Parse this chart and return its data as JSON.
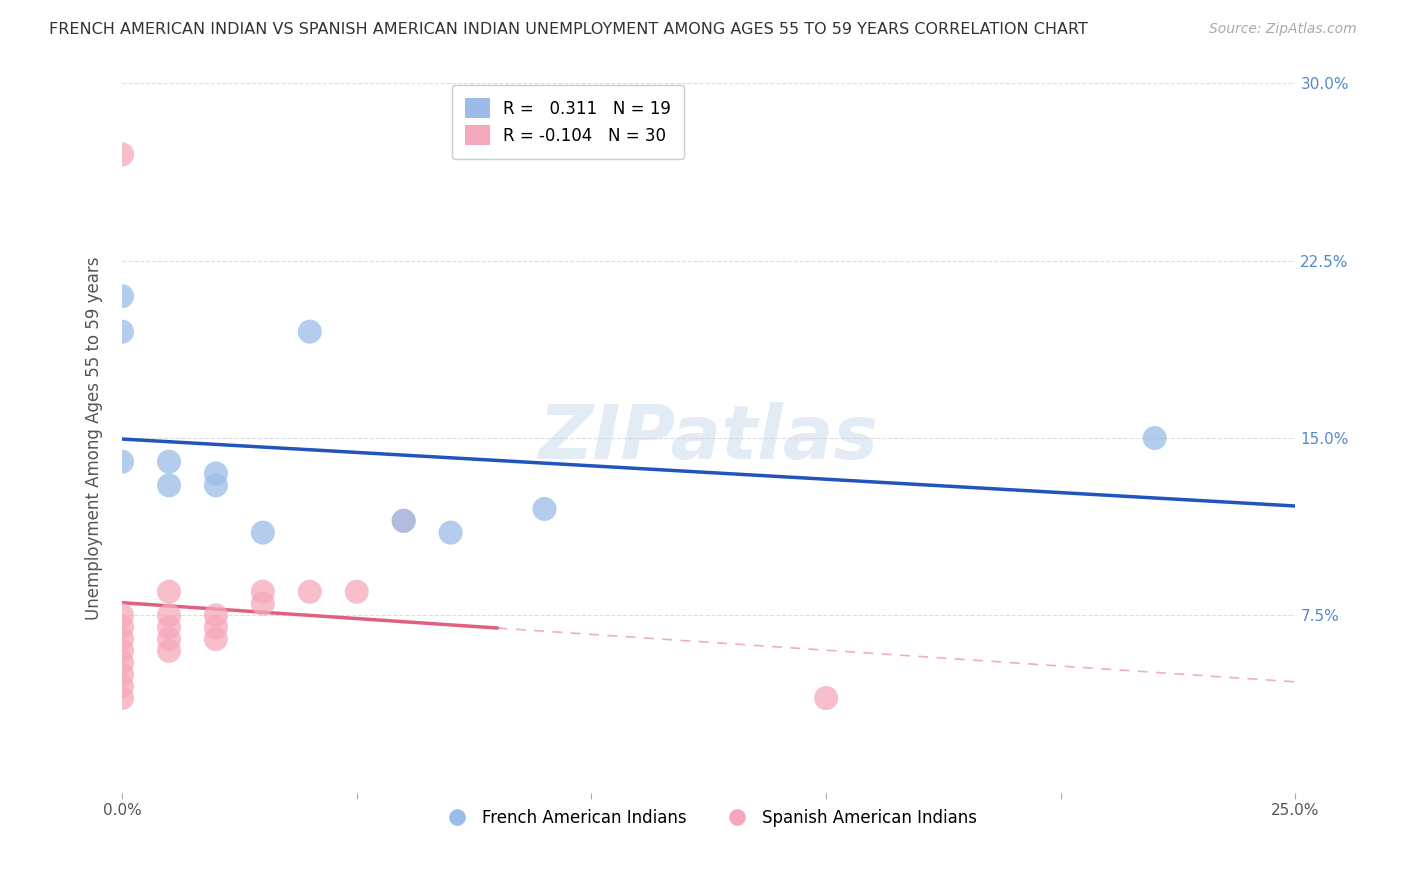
{
  "title": "FRENCH AMERICAN INDIAN VS SPANISH AMERICAN INDIAN UNEMPLOYMENT AMONG AGES 55 TO 59 YEARS CORRELATION CHART",
  "source": "Source: ZipAtlas.com",
  "ylabel": "Unemployment Among Ages 55 to 59 years",
  "xlim": [
    0.0,
    0.25
  ],
  "ylim": [
    0.0,
    0.3
  ],
  "xticks": [
    0.0,
    0.05,
    0.1,
    0.15,
    0.2,
    0.25
  ],
  "xtick_labels": [
    "0.0%",
    "",
    "",
    "",
    "",
    "25.0%"
  ],
  "yticks": [
    0.0,
    0.075,
    0.15,
    0.225,
    0.3
  ],
  "ytick_labels": [
    "",
    "7.5%",
    "15.0%",
    "22.5%",
    "30.0%"
  ],
  "watermark": "ZIPatlas",
  "blue_R": 0.311,
  "blue_N": 19,
  "pink_R": -0.104,
  "pink_N": 30,
  "blue_color": "#9BBCE8",
  "pink_color": "#F5A8BB",
  "blue_line_color": "#2255BB",
  "pink_line_color": "#E06080",
  "pink_line_solid_end": 0.08,
  "legend_french": "French American Indians",
  "legend_spanish": "Spanish American Indians",
  "blue_scatter_x": [
    0.0,
    0.0,
    0.0,
    0.01,
    0.01,
    0.02,
    0.02,
    0.03,
    0.04,
    0.06,
    0.07,
    0.09,
    0.22
  ],
  "blue_scatter_y": [
    0.21,
    0.195,
    0.14,
    0.14,
    0.13,
    0.135,
    0.13,
    0.11,
    0.195,
    0.115,
    0.11,
    0.12,
    0.15
  ],
  "pink_scatter_x": [
    0.0,
    0.0,
    0.0,
    0.0,
    0.0,
    0.0,
    0.0,
    0.0,
    0.0,
    0.01,
    0.01,
    0.01,
    0.01,
    0.01,
    0.02,
    0.02,
    0.02,
    0.03,
    0.03,
    0.04,
    0.05,
    0.06,
    0.15
  ],
  "pink_scatter_y": [
    0.27,
    0.075,
    0.07,
    0.065,
    0.06,
    0.055,
    0.05,
    0.045,
    0.04,
    0.085,
    0.075,
    0.07,
    0.065,
    0.06,
    0.075,
    0.07,
    0.065,
    0.085,
    0.08,
    0.085,
    0.085,
    0.115,
    0.04
  ],
  "background_color": "#FFFFFF",
  "grid_color": "#DDDDDD"
}
